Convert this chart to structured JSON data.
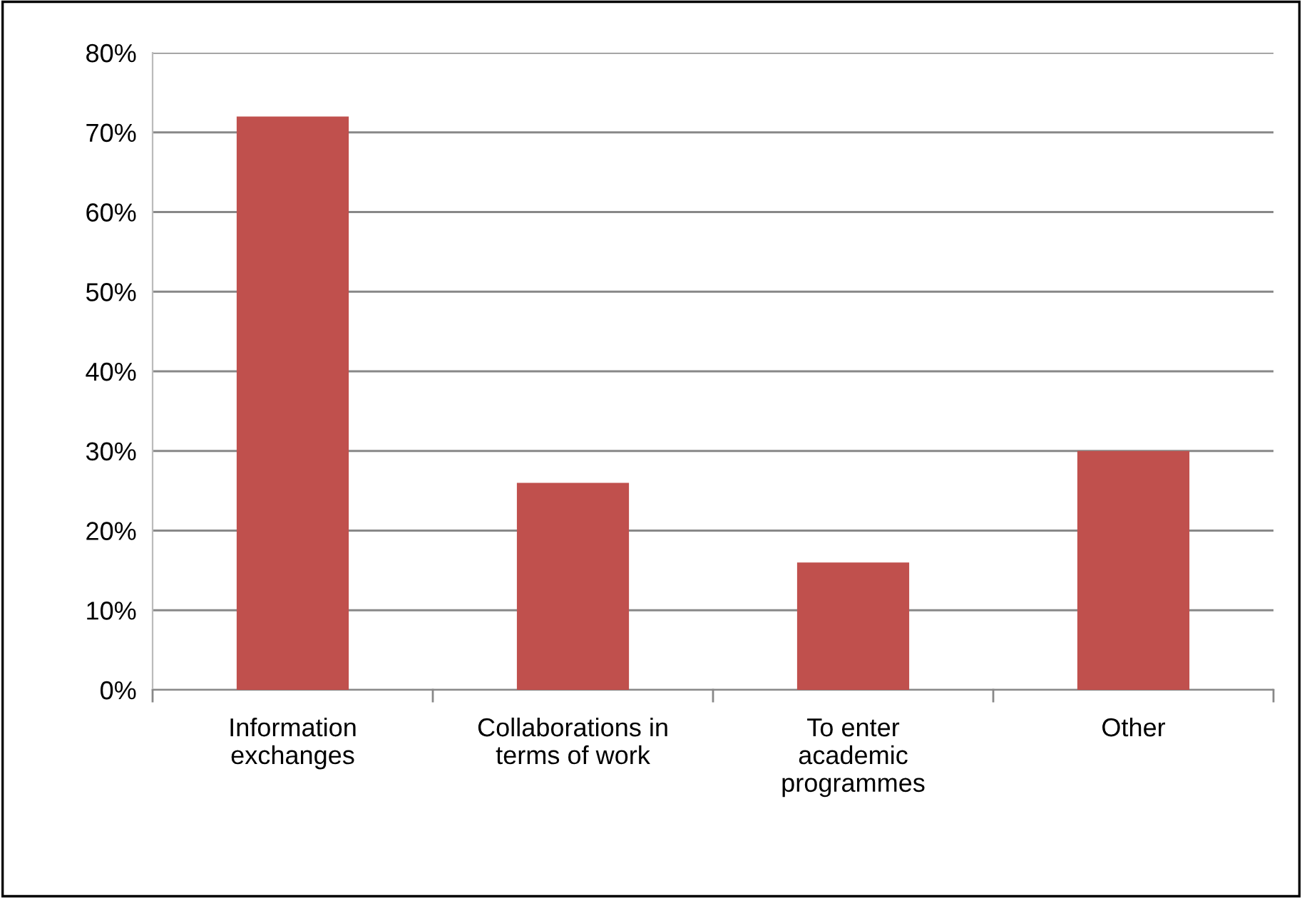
{
  "chart_data": {
    "type": "bar",
    "categories": [
      "Information\nexchanges",
      "Collaborations in\nterms of work",
      "To enter\nacademic\nprogrammes",
      "Other"
    ],
    "values": [
      72,
      26,
      16,
      30
    ],
    "color": "#c0504d",
    "ylim": [
      0,
      80
    ],
    "yticks": [
      {
        "value": 0,
        "label": "0%"
      },
      {
        "value": 10,
        "label": "10%"
      },
      {
        "value": 20,
        "label": "20%"
      },
      {
        "value": 30,
        "label": "30%"
      },
      {
        "value": 40,
        "label": "40%"
      },
      {
        "value": 50,
        "label": "50%"
      },
      {
        "value": 60,
        "label": "60%"
      },
      {
        "value": 70,
        "label": "70%"
      },
      {
        "value": 80,
        "label": "80%"
      }
    ],
    "grid": "y",
    "legend": false
  }
}
